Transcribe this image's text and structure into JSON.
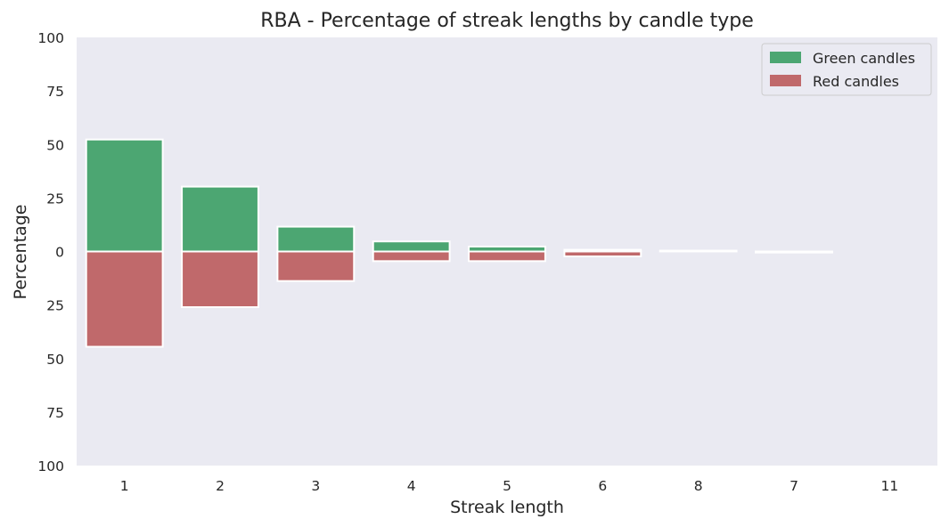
{
  "chart_data": {
    "type": "bar",
    "title": "RBA - Percentage of streak lengths by candle type",
    "xlabel": "Streak length",
    "ylabel": "Percentage",
    "categories": [
      "1",
      "2",
      "3",
      "4",
      "5",
      "6",
      "8",
      "7",
      "11"
    ],
    "series": [
      {
        "name": "Green candles",
        "color": "#4ca672",
        "direction": "up",
        "values": [
          52.3,
          30.3,
          11.6,
          4.7,
          2.3,
          0.8,
          0.4,
          0.0,
          0.0
        ]
      },
      {
        "name": "Red candles",
        "color": "#c0696b",
        "direction": "down",
        "values": [
          44.5,
          26.0,
          13.8,
          4.5,
          4.5,
          2.3,
          0.0,
          0.5,
          0.0
        ]
      }
    ],
    "ylim": [
      -100,
      100
    ],
    "ytick_values": [
      100,
      75,
      50,
      25,
      0,
      -25,
      -50,
      -75,
      -100
    ],
    "ytick_labels": [
      "100",
      "75",
      "50",
      "25",
      "0",
      "25",
      "50",
      "75",
      "100"
    ],
    "grid": false,
    "legend_position": "top-right",
    "background_color": "#eaeaf2"
  }
}
